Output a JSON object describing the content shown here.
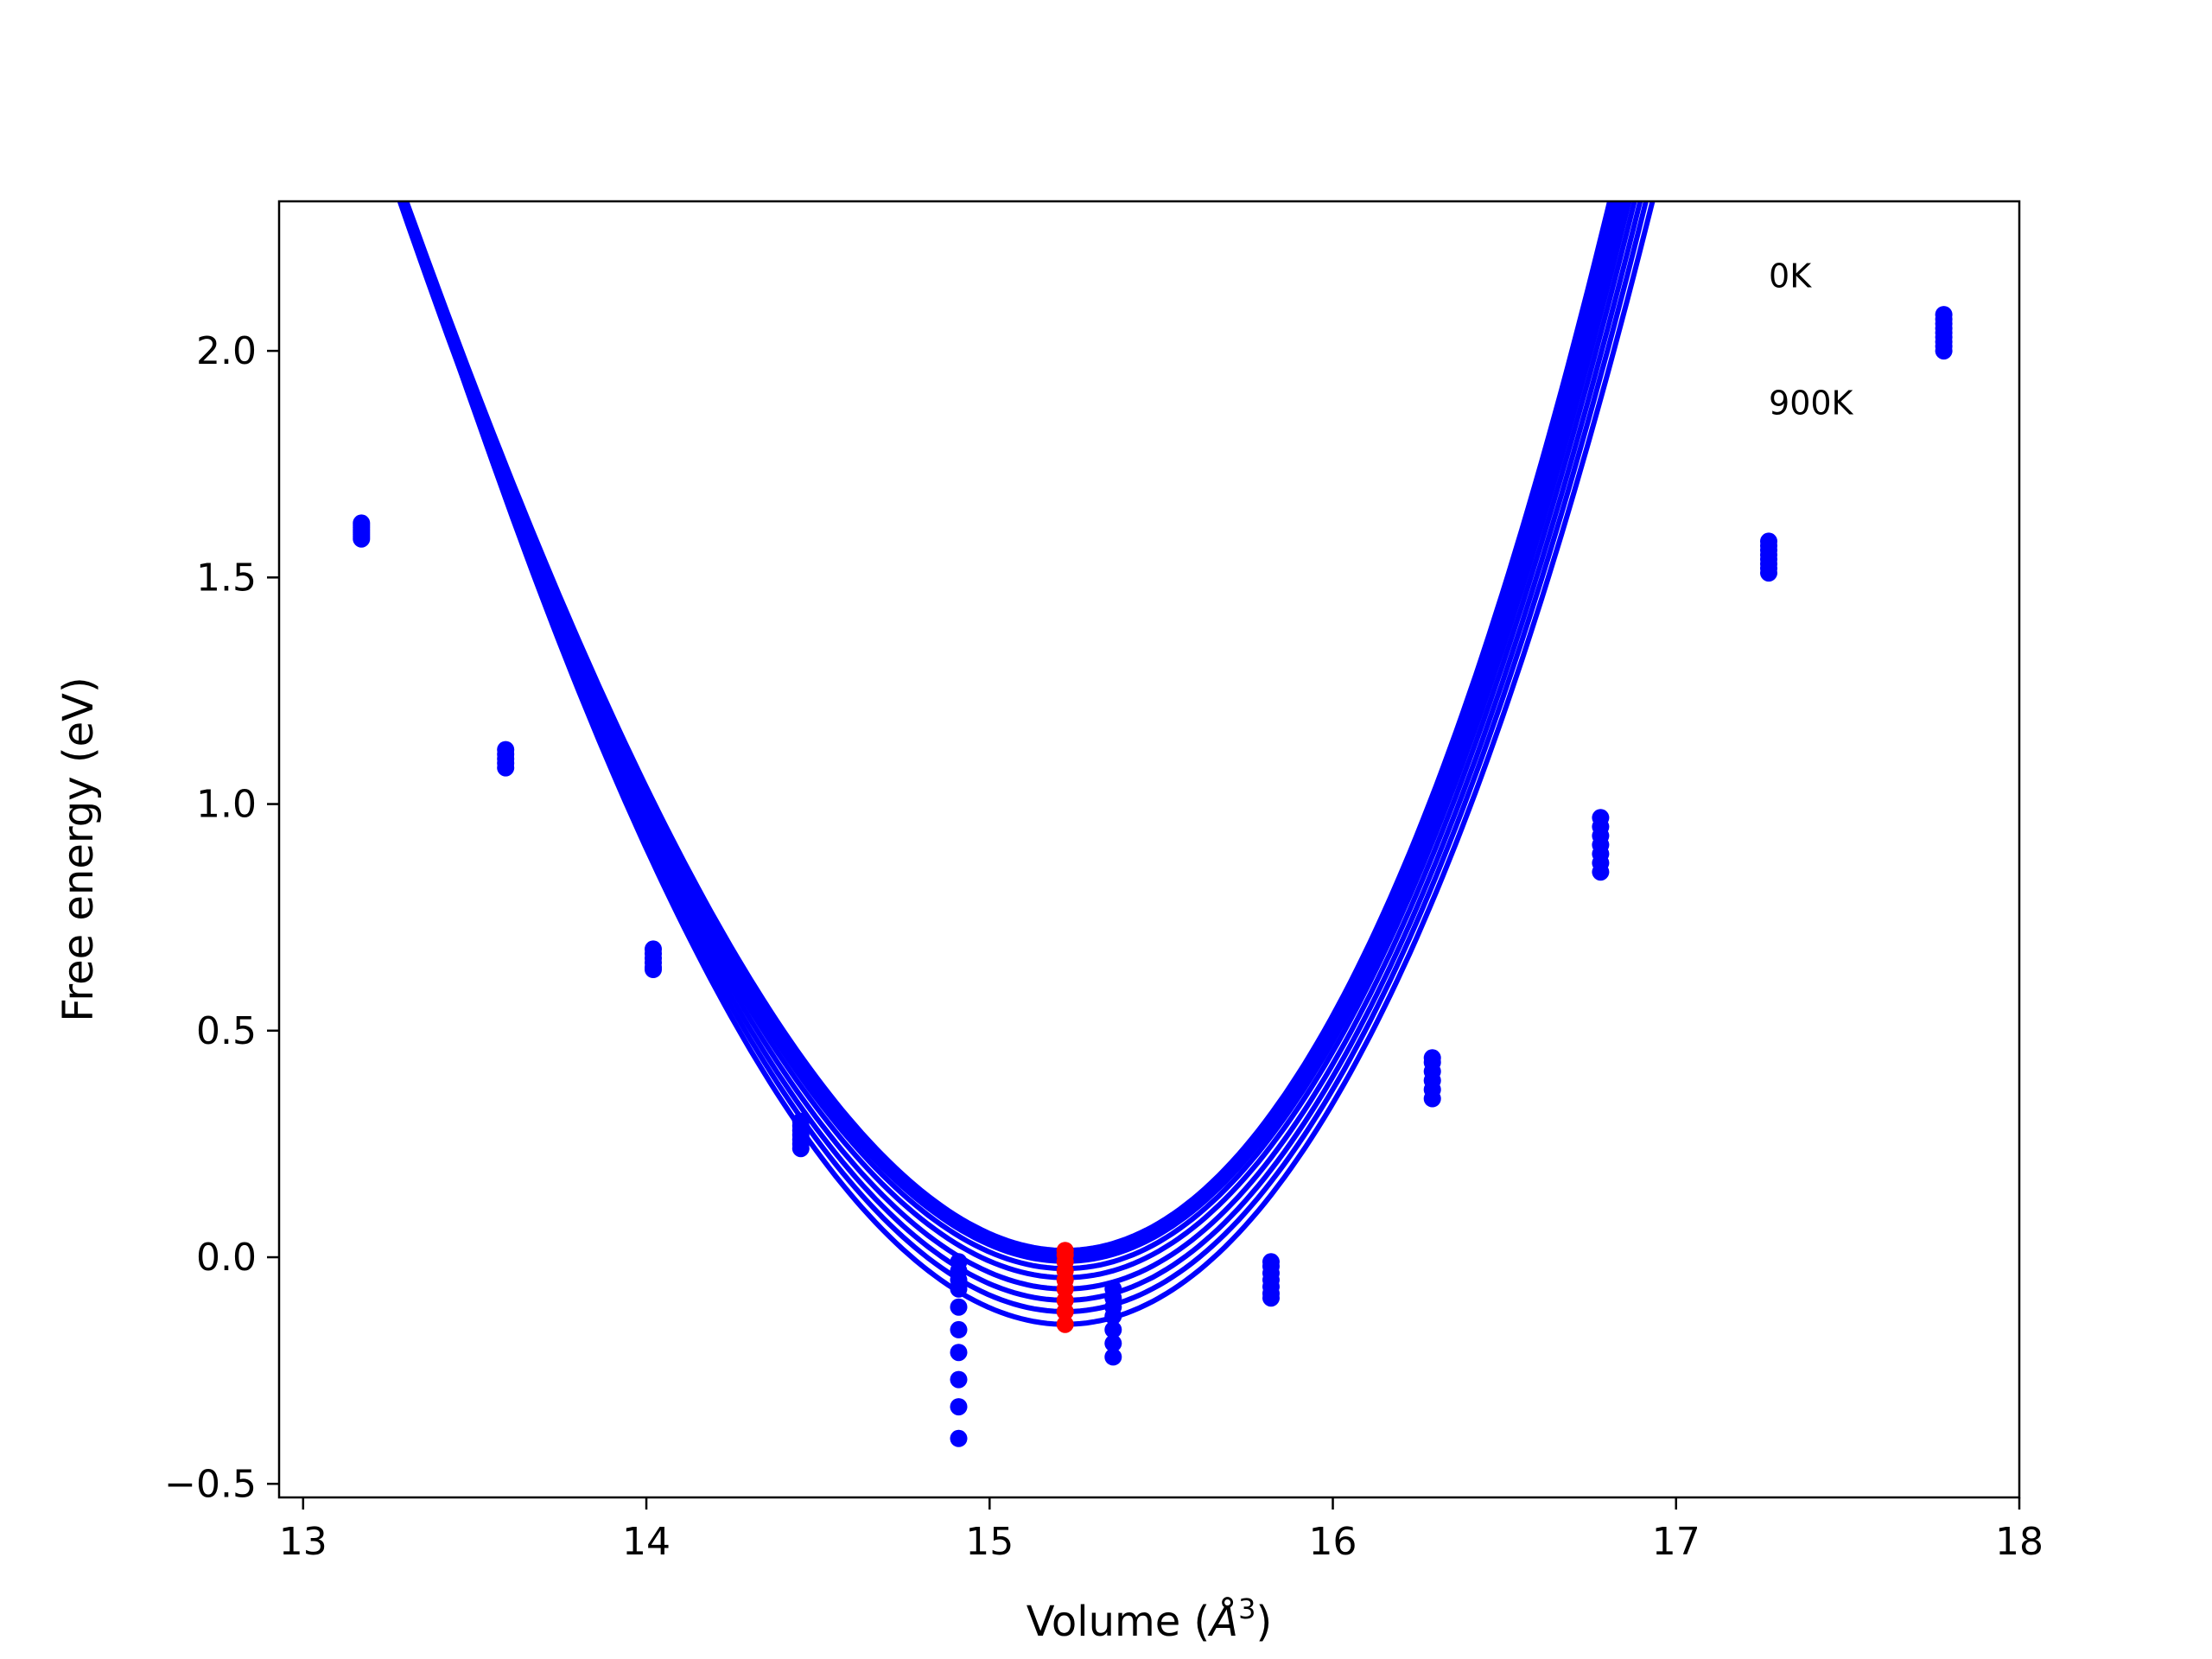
{
  "chart_data": {
    "type": "scatter",
    "title": "",
    "xlabel": "Volume (",
    "xlabel_symbol": "Å",
    "xlabel_sup": "3",
    "xlabel_close": ")",
    "ylabel": "Free energy (eV)",
    "xlim": [
      12.93,
      18.0
    ],
    "ylim": [
      -0.53,
      2.33
    ],
    "xticks": [
      13,
      14,
      15,
      16,
      17,
      18
    ],
    "xtick_labels": [
      "13",
      "14",
      "15",
      "16",
      "17",
      "18"
    ],
    "yticks": [
      -0.5,
      0.0,
      0.5,
      1.0,
      1.5,
      2.0
    ],
    "ytick_labels": [
      "−0.5",
      "0.0",
      "0.5",
      "1.0",
      "1.5",
      "2.0"
    ],
    "grid": false,
    "legend": "none",
    "annotations": [
      {
        "text": "0K",
        "x": 17.27,
        "y": 2.14
      },
      {
        "text": "900K",
        "x": 17.27,
        "y": 1.86
      }
    ],
    "curve_color": "#0000ff",
    "point_color": "#0000ff",
    "minimum_color": "#ff0000",
    "fit_x_range": [
      13.17,
      17.78
    ],
    "curves": [
      {
        "name": "",
        "vmin": 15.22,
        "fmin": 0.015,
        "a": 0.788,
        "b": 0.083
      },
      {
        "name": "",
        "vmin": 15.22,
        "fmin": 0.012,
        "a": 0.785,
        "b": 0.082
      },
      {
        "name": "",
        "vmin": 15.22,
        "fmin": 0.008,
        "a": 0.782,
        "b": 0.081
      },
      {
        "name": "",
        "vmin": 15.22,
        "fmin": 0.004,
        "a": 0.779,
        "b": 0.08
      },
      {
        "name": "",
        "vmin": 15.22,
        "fmin": 0.0,
        "a": 0.776,
        "b": 0.078
      },
      {
        "name": "",
        "vmin": 15.22,
        "fmin": -0.004,
        "a": 0.773,
        "b": 0.077
      },
      {
        "name": "",
        "vmin": 15.22,
        "fmin": -0.009,
        "a": 0.77,
        "b": 0.075
      },
      {
        "name": "",
        "vmin": 15.22,
        "fmin": -0.025,
        "a": 0.768,
        "b": 0.072
      },
      {
        "name": "",
        "vmin": 15.22,
        "fmin": -0.045,
        "a": 0.766,
        "b": 0.069
      },
      {
        "name": "",
        "vmin": 15.22,
        "fmin": -0.07,
        "a": 0.766,
        "b": 0.064
      },
      {
        "name": "",
        "vmin": 15.22,
        "fmin": -0.095,
        "a": 0.765,
        "b": 0.059
      },
      {
        "name": "",
        "vmin": 15.22,
        "fmin": -0.12,
        "a": 0.764,
        "b": 0.054
      },
      {
        "name": "",
        "vmin": 15.22,
        "fmin": -0.148,
        "a": 0.764,
        "b": 0.048
      }
    ],
    "points": [
      {
        "x": 13.17,
        "y": [
          1.62,
          1.615,
          1.61,
          1.605,
          1.6,
          1.595,
          1.59,
          1.585
        ]
      },
      {
        "x": 13.59,
        "y": [
          1.12,
          1.11,
          1.1,
          1.09,
          1.08
        ]
      },
      {
        "x": 14.02,
        "y": [
          0.68,
          0.67,
          0.66,
          0.65,
          0.64,
          0.635
        ]
      },
      {
        "x": 14.45,
        "y": [
          0.3,
          0.29,
          0.28,
          0.27,
          0.26,
          0.25,
          0.24
        ]
      },
      {
        "x": 14.91,
        "y": [
          -0.01,
          -0.03,
          -0.05,
          -0.07,
          -0.11,
          -0.16,
          -0.21,
          -0.27,
          -0.33,
          -0.4
        ]
      },
      {
        "x": 15.36,
        "y": [
          -0.07,
          -0.09,
          -0.11,
          -0.13,
          -0.16,
          -0.19,
          -0.22
        ]
      },
      {
        "x": 15.82,
        "y": [
          -0.01,
          -0.02,
          -0.035,
          -0.05,
          -0.065,
          -0.08,
          -0.09
        ]
      },
      {
        "x": 16.29,
        "y": [
          0.44,
          0.43,
          0.41,
          0.39,
          0.37,
          0.35
        ]
      },
      {
        "x": 16.78,
        "y": [
          0.97,
          0.95,
          0.93,
          0.91,
          0.89,
          0.87,
          0.85
        ]
      },
      {
        "x": 17.27,
        "y": [
          1.58,
          1.57,
          1.56,
          1.55,
          1.54,
          1.53,
          1.52,
          1.51
        ]
      },
      {
        "x": 17.78,
        "y": [
          2.08,
          2.07,
          2.06,
          2.05,
          2.04,
          2.03,
          2.02,
          2.01,
          2.0
        ]
      }
    ],
    "minima": {
      "x": 15.22,
      "y": [
        0.015,
        0.005,
        -0.01,
        -0.03,
        -0.05,
        -0.07,
        -0.095,
        -0.12,
        -0.148
      ]
    }
  }
}
